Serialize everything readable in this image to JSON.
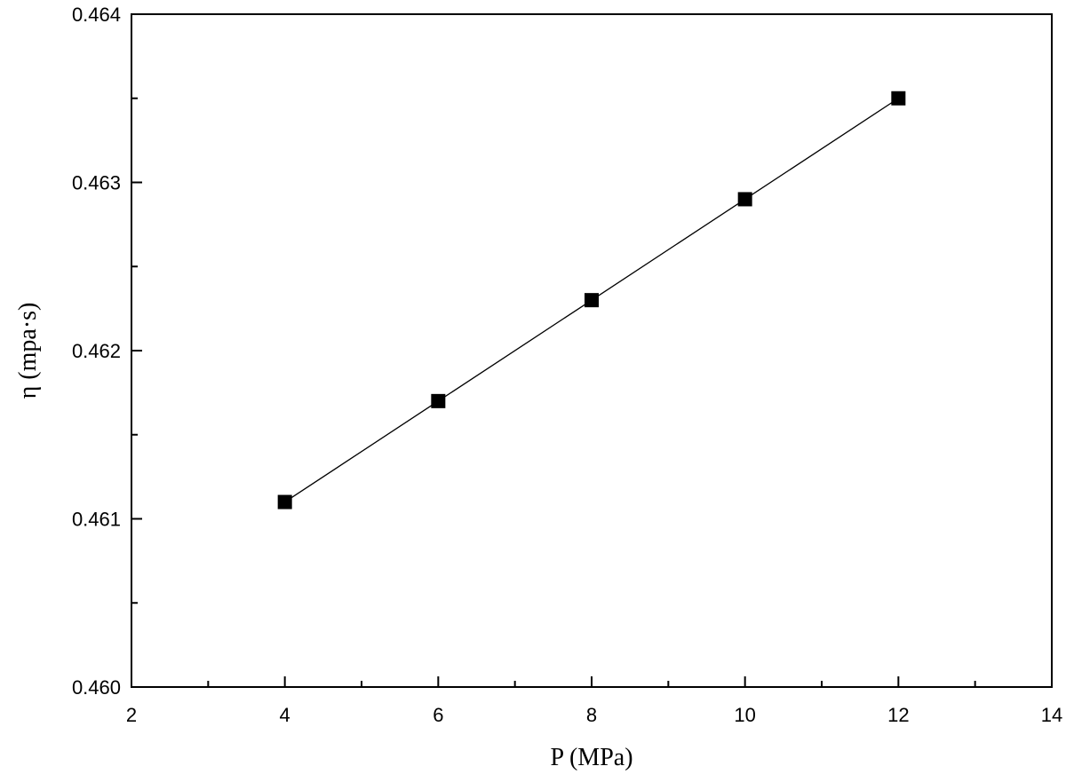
{
  "chart_data": {
    "type": "line",
    "title": "",
    "xlabel": "P (MPa)",
    "ylabel": "η (mpa·s)",
    "xlim": [
      2,
      14
    ],
    "ylim": [
      0.46,
      0.464
    ],
    "x_ticks": [
      2,
      4,
      6,
      8,
      10,
      12,
      14
    ],
    "x_minor_ticks": [
      3,
      5,
      7,
      9,
      11,
      13
    ],
    "y_ticks": [
      0.46,
      0.461,
      0.462,
      0.463,
      0.464
    ],
    "y_minor_ticks": [
      0.4605,
      0.4615,
      0.4625,
      0.4635
    ],
    "x_tick_labels": [
      "2",
      "4",
      "6",
      "8",
      "10",
      "12",
      "14"
    ],
    "y_tick_labels": [
      "0.460",
      "0.461",
      "0.462",
      "0.463",
      "0.464"
    ],
    "grid": false,
    "series": [
      {
        "name": "η",
        "marker": "square",
        "color": "#000000",
        "x": [
          4,
          6,
          8,
          10,
          12
        ],
        "y": [
          0.4611,
          0.4617,
          0.4623,
          0.4629,
          0.4635
        ]
      }
    ]
  }
}
